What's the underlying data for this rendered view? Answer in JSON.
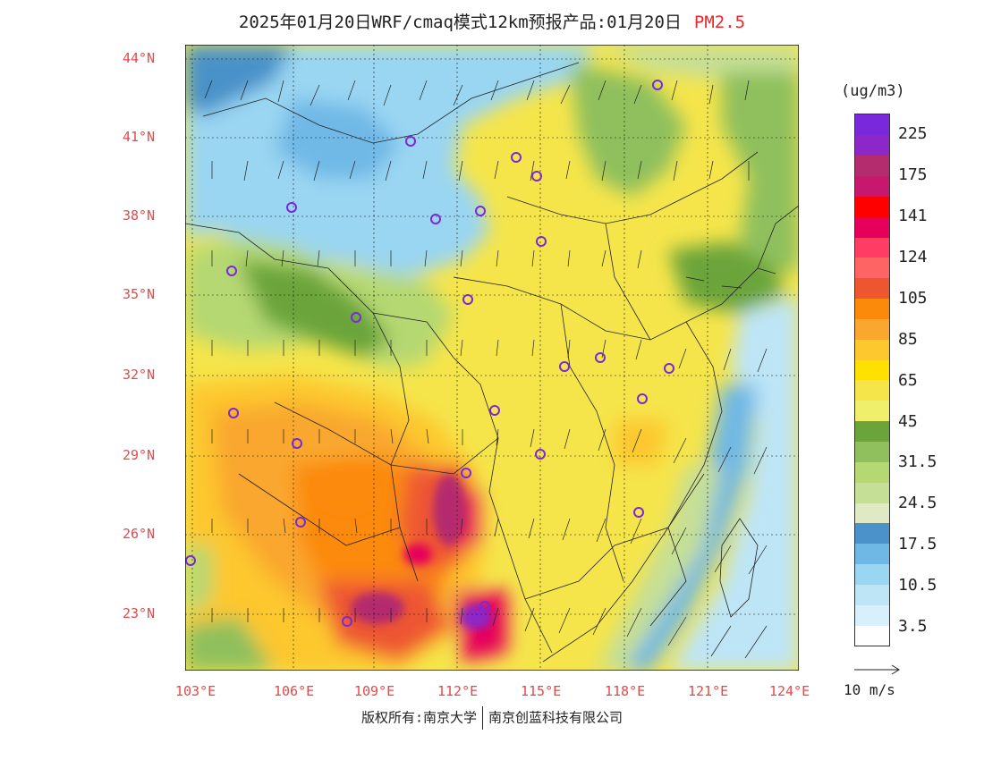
{
  "title": {
    "main": "2025年01月20日WRF/cmaq模式12km预报产品:01月20日",
    "species": "PM2.5"
  },
  "map": {
    "lat_labels": [
      "44°N",
      "41°N",
      "38°N",
      "35°N",
      "32°N",
      "29°N",
      "26°N",
      "23°N"
    ],
    "lon_labels": [
      "103°E",
      "106°E",
      "109°E",
      "112°E",
      "115°E",
      "118°E",
      "121°E",
      "124°E"
    ]
  },
  "colorbar": {
    "unit": "(ug/m3)",
    "colors": [
      "#ffffff",
      "#d8f0fb",
      "#bde5f6",
      "#9ad6f2",
      "#6fb8e6",
      "#4a92c9",
      "#dfe9c4",
      "#c6df96",
      "#b5d872",
      "#8fc05d",
      "#6aa43a",
      "#f0ef6c",
      "#f5e54b",
      "#ffe000",
      "#fdc72e",
      "#f9a72f",
      "#fc8a0a",
      "#ee5630",
      "#ff6464",
      "#ff3c64",
      "#e6005a",
      "#ff0000",
      "#c8186e",
      "#b42c6e",
      "#8c28c8",
      "#7a28dc"
    ],
    "labels": [
      "3.5",
      "10.5",
      "17.5",
      "24.5",
      "31.5",
      "45",
      "65",
      "85",
      "105",
      "124",
      "141",
      "175",
      "225"
    ]
  },
  "wind_legend": {
    "label": "10 m/s"
  },
  "footer": {
    "left": "版权所有:南京大学",
    "right": "南京创蓝科技有限公司"
  }
}
